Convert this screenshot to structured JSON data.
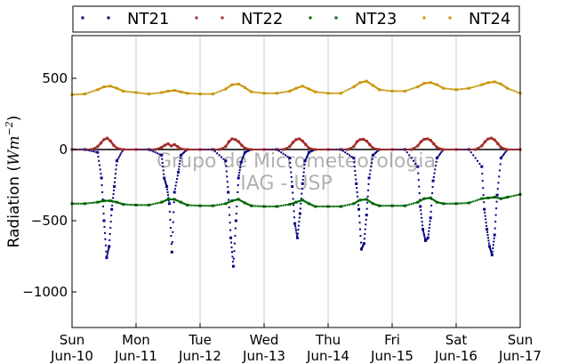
{
  "chart_data": {
    "type": "scatter",
    "title": "",
    "xlabel": "",
    "ylabel": "Radiation (Wm⁻²)",
    "ylabel_plain": "Radiation (",
    "ylabel_unit": "Wm",
    "ylabel_exp": "−2",
    "ylabel_close": ")",
    "xlim": [
      0,
      7
    ],
    "ylim": [
      -1250,
      800
    ],
    "grid": true,
    "legend_position": "top",
    "x_ticks": [
      {
        "value": 0,
        "day": "Sun",
        "date": "Jun-10"
      },
      {
        "value": 1,
        "day": "Mon",
        "date": "Jun-11"
      },
      {
        "value": 2,
        "day": "Tue",
        "date": "Jun-12"
      },
      {
        "value": 3,
        "day": "Wed",
        "date": "Jun-13"
      },
      {
        "value": 4,
        "day": "Thu",
        "date": "Jun-14"
      },
      {
        "value": 5,
        "day": "Fri",
        "date": "Jun-15"
      },
      {
        "value": 6,
        "day": "Sat",
        "date": "Jun-16"
      },
      {
        "value": 7,
        "day": "Sun",
        "date": "Jun-17"
      }
    ],
    "y_ticks": [
      {
        "value": 500,
        "label": "500"
      },
      {
        "value": 0,
        "label": "0"
      },
      {
        "value": -500,
        "label": "−500"
      },
      {
        "value": -1000,
        "label": "−1000"
      }
    ],
    "watermark": [
      "Grupo de Micrometeorologia",
      "IAG - USP"
    ],
    "series": [
      {
        "name": "NT21",
        "color": "#00007f",
        "x": [
          0.0,
          0.2,
          0.4,
          0.46,
          0.5,
          0.54,
          0.58,
          0.62,
          0.66,
          0.7,
          0.8,
          1.0,
          1.2,
          1.4,
          1.44,
          1.48,
          1.52,
          1.56,
          1.6,
          1.66,
          1.7,
          1.8,
          2.0,
          2.2,
          2.4,
          2.44,
          2.48,
          2.52,
          2.56,
          2.6,
          2.64,
          2.7,
          2.8,
          3.0,
          3.2,
          3.4,
          3.44,
          3.48,
          3.52,
          3.56,
          3.6,
          3.64,
          3.7,
          3.8,
          4.0,
          4.2,
          4.4,
          4.44,
          4.48,
          4.52,
          4.56,
          4.6,
          4.64,
          4.7,
          4.8,
          5.0,
          5.2,
          5.4,
          5.44,
          5.48,
          5.52,
          5.56,
          5.6,
          5.64,
          5.7,
          5.8,
          6.0,
          6.2,
          6.4,
          6.44,
          6.48,
          6.52,
          6.56,
          6.6,
          6.64,
          6.7,
          6.8,
          7.0
        ],
        "y": [
          0,
          0,
          -20,
          -200,
          -500,
          -760,
          -680,
          -420,
          -260,
          -80,
          0,
          0,
          0,
          -40,
          -200,
          -260,
          -380,
          -720,
          -300,
          -160,
          -40,
          0,
          0,
          0,
          -80,
          -300,
          -620,
          -820,
          -500,
          -200,
          -90,
          -20,
          0,
          0,
          0,
          -60,
          -260,
          -520,
          -620,
          -450,
          -240,
          -80,
          -20,
          0,
          0,
          0,
          -60,
          -240,
          -420,
          -700,
          -660,
          -460,
          -200,
          -40,
          0,
          0,
          0,
          -120,
          -400,
          -560,
          -640,
          -620,
          -480,
          -220,
          -60,
          0,
          0,
          0,
          -120,
          -420,
          -560,
          -680,
          -740,
          -600,
          -320,
          -60,
          0,
          0
        ]
      },
      {
        "name": "NT22",
        "color": "#a52a2a",
        "x": [
          0.0,
          0.3,
          0.4,
          0.45,
          0.5,
          0.55,
          0.6,
          0.65,
          0.7,
          0.8,
          1.0,
          1.3,
          1.4,
          1.45,
          1.5,
          1.55,
          1.6,
          1.65,
          1.7,
          1.8,
          2.0,
          2.3,
          2.4,
          2.45,
          2.5,
          2.55,
          2.6,
          2.65,
          2.7,
          2.8,
          3.0,
          3.3,
          3.4,
          3.45,
          3.5,
          3.55,
          3.6,
          3.65,
          3.7,
          3.8,
          4.0,
          4.3,
          4.4,
          4.45,
          4.5,
          4.55,
          4.6,
          4.65,
          4.7,
          4.8,
          5.0,
          5.3,
          5.4,
          5.45,
          5.5,
          5.55,
          5.6,
          5.65,
          5.7,
          5.8,
          6.0,
          6.3,
          6.4,
          6.45,
          6.5,
          6.55,
          6.6,
          6.65,
          6.7,
          6.8,
          7.0
        ],
        "y": [
          0,
          0,
          20,
          45,
          70,
          80,
          60,
          30,
          10,
          0,
          0,
          0,
          15,
          30,
          40,
          25,
          35,
          20,
          5,
          0,
          0,
          0,
          20,
          55,
          75,
          70,
          55,
          30,
          10,
          0,
          0,
          0,
          20,
          50,
          70,
          75,
          60,
          35,
          10,
          0,
          0,
          0,
          20,
          55,
          70,
          72,
          60,
          35,
          10,
          0,
          0,
          0,
          25,
          55,
          72,
          75,
          65,
          40,
          15,
          0,
          0,
          0,
          25,
          55,
          75,
          80,
          68,
          42,
          15,
          0,
          0
        ]
      },
      {
        "name": "NT23",
        "color": "#006400",
        "x": [
          0.0,
          0.2,
          0.4,
          0.5,
          0.6,
          0.7,
          0.8,
          1.0,
          1.2,
          1.4,
          1.5,
          1.6,
          1.7,
          1.8,
          2.0,
          2.2,
          2.4,
          2.5,
          2.6,
          2.7,
          2.8,
          3.0,
          3.2,
          3.4,
          3.5,
          3.6,
          3.7,
          3.8,
          4.0,
          4.2,
          4.4,
          4.5,
          4.6,
          4.7,
          4.8,
          5.0,
          5.2,
          5.4,
          5.5,
          5.6,
          5.7,
          5.8,
          6.0,
          6.2,
          6.4,
          6.5,
          6.6,
          6.7,
          6.8,
          7.0
        ],
        "y": [
          -380,
          -380,
          -370,
          -360,
          -360,
          -370,
          -385,
          -390,
          -390,
          -370,
          -350,
          -350,
          -370,
          -390,
          -395,
          -395,
          -380,
          -360,
          -350,
          -375,
          -395,
          -400,
          -400,
          -385,
          -370,
          -355,
          -380,
          -400,
          -400,
          -400,
          -380,
          -355,
          -350,
          -380,
          -395,
          -395,
          -395,
          -370,
          -345,
          -340,
          -370,
          -380,
          -380,
          -375,
          -345,
          -340,
          -335,
          -345,
          -335,
          -315
        ]
      },
      {
        "name": "NT24",
        "color": "#c8960c",
        "x": [
          0.0,
          0.2,
          0.4,
          0.5,
          0.6,
          0.7,
          0.8,
          1.0,
          1.2,
          1.4,
          1.5,
          1.6,
          1.7,
          1.8,
          2.0,
          2.2,
          2.4,
          2.5,
          2.6,
          2.7,
          2.8,
          3.0,
          3.2,
          3.4,
          3.5,
          3.6,
          3.7,
          3.8,
          4.0,
          4.2,
          4.4,
          4.5,
          4.6,
          4.7,
          4.8,
          5.0,
          5.2,
          5.4,
          5.5,
          5.6,
          5.7,
          5.8,
          6.0,
          6.2,
          6.4,
          6.5,
          6.6,
          6.7,
          6.8,
          7.0
        ],
        "y": [
          385,
          390,
          420,
          440,
          445,
          430,
          410,
          400,
          390,
          400,
          410,
          415,
          405,
          395,
          390,
          390,
          425,
          455,
          460,
          435,
          405,
          395,
          395,
          410,
          430,
          445,
          425,
          405,
          395,
          395,
          440,
          470,
          480,
          450,
          420,
          410,
          410,
          440,
          465,
          470,
          455,
          430,
          420,
          430,
          455,
          470,
          475,
          460,
          430,
          395
        ]
      }
    ]
  }
}
